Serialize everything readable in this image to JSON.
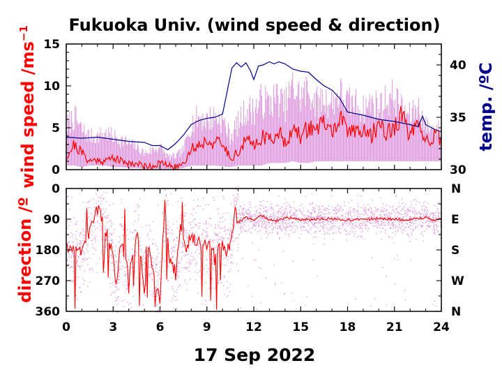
{
  "colors": {
    "speed_mean": "#ff0000",
    "speed_range": "#dd99dd",
    "temperature": "#00008b",
    "direction_mean": "#ff0000",
    "direction_points": "#dd99dd",
    "axis": "#000000"
  },
  "figure": {
    "title": "Fukuoka Univ. (wind speed & direction)",
    "date_label": "17 Sep 2022"
  },
  "chart_data": [
    {
      "type": "line",
      "name": "wind-speed-temperature",
      "ylabel": "wind speed /ms",
      "ylabel_sup": "−1",
      "y2label": "temp. /ºC",
      "xlim": [
        0,
        24
      ],
      "ylim": [
        0,
        15
      ],
      "y2lim": [
        30,
        42
      ],
      "xticks": [
        "0",
        "3",
        "6",
        "9",
        "12",
        "15",
        "18",
        "21",
        "24"
      ],
      "yticks": [
        "0",
        "5",
        "10",
        "15"
      ],
      "y2ticks": [
        "30",
        "35",
        "40"
      ],
      "grid": false,
      "series": [
        {
          "type": "area",
          "role": "gust-range",
          "x": [
            0,
            0.5,
            1,
            1.5,
            2,
            2.5,
            3,
            3.5,
            4,
            4.5,
            5,
            5.5,
            6,
            6.5,
            7,
            7.5,
            8,
            8.5,
            9,
            9.5,
            10,
            10.5,
            11,
            11.5,
            12,
            12.5,
            13,
            13.5,
            14,
            14.5,
            15,
            15.5,
            16,
            16.5,
            17,
            17.5,
            18,
            18.5,
            19,
            19.5,
            20,
            20.5,
            21,
            21.5,
            22,
            22.5,
            23,
            23.5,
            24
          ],
          "low": [
            0.5,
            0.5,
            0.3,
            0.5,
            0.5,
            0.5,
            0.3,
            0.3,
            0.2,
            0.2,
            0.1,
            0.1,
            0.1,
            0.1,
            0.1,
            0.2,
            0.5,
            0.5,
            0.5,
            0.5,
            0.4,
            0.3,
            0.5,
            0.5,
            0.5,
            0.5,
            0.8,
            0.8,
            0.8,
            1.0,
            0.8,
            0.8,
            1.0,
            1.0,
            1.0,
            1.0,
            1.0,
            1.0,
            1.0,
            1.0,
            1.0,
            1.0,
            1.0,
            1.0,
            1.0,
            1.0,
            1.0,
            1.0,
            1.0
          ],
          "high": [
            6.5,
            8.0,
            6.0,
            5.0,
            5.0,
            5.5,
            5.0,
            4.5,
            4.0,
            3.5,
            2.5,
            3.0,
            3.5,
            2.0,
            2.0,
            3.0,
            7.0,
            8.0,
            7.5,
            8.0,
            7.5,
            5.0,
            7.0,
            9.0,
            9.0,
            10.5,
            10.0,
            11.0,
            9.5,
            12.5,
            11.0,
            12.0,
            10.0,
            10.5,
            10.0,
            11.5,
            10.0,
            10.0,
            9.0,
            10.0,
            9.5,
            10.5,
            11.0,
            9.0,
            8.0,
            9.5,
            6.5,
            6.0,
            6.0
          ]
        },
        {
          "type": "line",
          "role": "wind-speed",
          "x": [
            0,
            0.5,
            1,
            1.5,
            2,
            2.5,
            3,
            3.5,
            4,
            4.5,
            5,
            5.5,
            6,
            6.5,
            7,
            7.5,
            8,
            8.5,
            9,
            9.5,
            10,
            10.5,
            11,
            11.5,
            12,
            12.5,
            13,
            13.5,
            14,
            14.5,
            15,
            15.5,
            16,
            16.5,
            17,
            17.5,
            18,
            18.5,
            19,
            19.5,
            20,
            20.5,
            21,
            21.5,
            22,
            22.5,
            23,
            23.5,
            24
          ],
          "values": [
            1.5,
            3.0,
            2.0,
            1.0,
            1.2,
            1.0,
            1.5,
            1.0,
            0.8,
            0.7,
            0.5,
            0.4,
            0.8,
            0.5,
            0.3,
            0.8,
            2.5,
            3.0,
            3.5,
            3.2,
            3.0,
            1.5,
            2.0,
            3.5,
            3.0,
            4.0,
            3.5,
            4.5,
            3.5,
            4.5,
            4.0,
            5.0,
            5.0,
            5.5,
            4.5,
            6.0,
            4.5,
            5.0,
            4.5,
            4.0,
            5.5,
            4.5,
            5.0,
            6.5,
            4.0,
            5.0,
            3.5,
            4.0,
            3.5
          ]
        },
        {
          "type": "line",
          "role": "temperature",
          "axis": "y2",
          "x": [
            0,
            1,
            2,
            3,
            4,
            5,
            5.5,
            6,
            6.5,
            7,
            7.5,
            8,
            8.5,
            9,
            9.5,
            10,
            10.3,
            10.6,
            10.9,
            11.2,
            11.5,
            11.8,
            12,
            12.3,
            12.6,
            13,
            13.3,
            13.6,
            14,
            14.5,
            15,
            15.5,
            16,
            16.5,
            17,
            17.5,
            18,
            19,
            20,
            21,
            22,
            22.5,
            22.8,
            23,
            23.5,
            24
          ],
          "values": [
            33.1,
            33.0,
            33.1,
            32.9,
            32.7,
            32.6,
            32.3,
            32.3,
            31.9,
            32.5,
            33.3,
            34.3,
            34.7,
            34.9,
            35.0,
            35.3,
            37.5,
            39.7,
            40.2,
            39.8,
            40.2,
            39.4,
            38.6,
            39.9,
            40.0,
            40.3,
            40.1,
            40.3,
            40.1,
            39.6,
            39.4,
            39.3,
            38.6,
            38.0,
            37.6,
            36.8,
            35.5,
            35.2,
            34.8,
            34.6,
            34.3,
            34.1,
            35.1,
            34.3,
            33.9,
            33.6
          ]
        }
      ]
    },
    {
      "type": "scatter",
      "name": "wind-direction",
      "ylabel": "direction /º",
      "xlim": [
        0,
        24
      ],
      "ylim": [
        360,
        0
      ],
      "xticks": [
        "0",
        "3",
        "6",
        "9",
        "12",
        "15",
        "18",
        "21",
        "24"
      ],
      "yticks": [
        "0",
        "90",
        "180",
        "270",
        "360"
      ],
      "y2ticks": [
        "N",
        "E",
        "S",
        "W",
        "N"
      ],
      "grid": false,
      "series": [
        {
          "type": "line",
          "role": "direction-mean",
          "x": [
            0,
            0.3,
            0.6,
            1,
            1.3,
            1.6,
            2,
            2.5,
            3,
            3.2,
            3.5,
            4,
            4.3,
            4.6,
            5,
            5.3,
            5.6,
            6,
            6.3,
            6.6,
            7,
            7.3,
            7.6,
            8,
            8.5,
            9,
            9.5,
            10,
            10.3,
            10.6,
            10.8,
            11,
            11.5,
            12,
            12.5,
            13,
            13.5,
            14,
            14.5,
            15,
            16,
            17,
            18,
            19,
            20,
            21,
            22,
            22.5,
            23,
            23.5,
            24
          ],
          "values": [
            170,
            190,
            175,
            185,
            150,
            120,
            60,
            110,
            200,
            300,
            150,
            240,
            200,
            130,
            300,
            160,
            260,
            330,
            40,
            200,
            250,
            120,
            180,
            140,
            160,
            170,
            175,
            160,
            190,
            150,
            60,
            100,
            85,
            92,
            80,
            90,
            95,
            85,
            88,
            92,
            90,
            88,
            92,
            90,
            88,
            90,
            92,
            88,
            85,
            95,
            90
          ]
        }
      ]
    }
  ]
}
